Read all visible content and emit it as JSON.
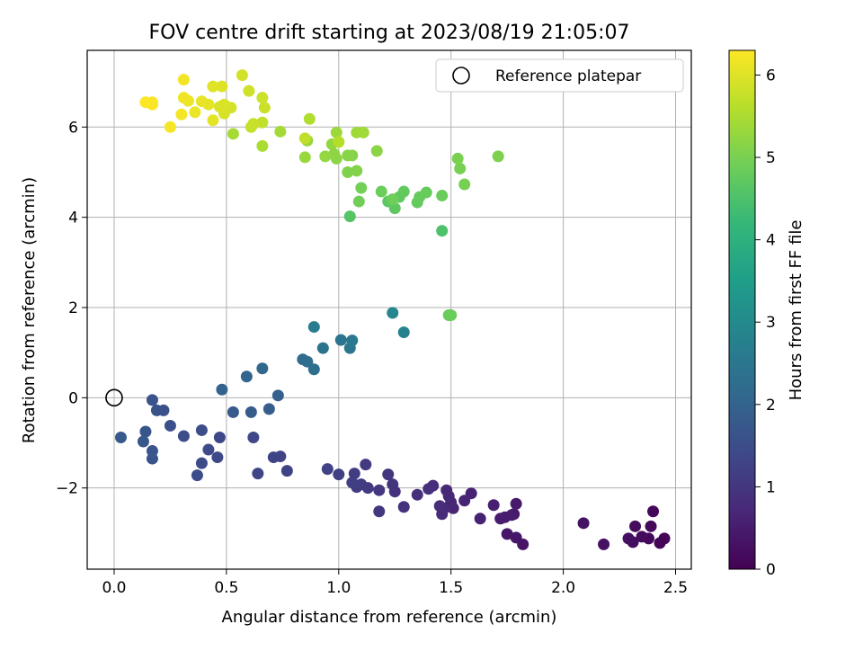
{
  "chart_data": {
    "type": "scatter",
    "title": "FOV centre drift starting at 2023/08/19 21:05:07",
    "xlabel": "Angular distance from reference (arcmin)",
    "ylabel": "Rotation from reference (arcmin)",
    "xlim": [
      -0.12,
      2.57
    ],
    "ylim": [
      -3.8,
      7.7
    ],
    "xticks": [
      0.0,
      0.5,
      1.0,
      1.5,
      2.0,
      2.5
    ],
    "xtick_labels": [
      "0.0",
      "0.5",
      "1.0",
      "1.5",
      "2.0",
      "2.5"
    ],
    "yticks": [
      -2,
      0,
      2,
      4,
      6
    ],
    "ytick_labels": [
      "−2",
      "0",
      "2",
      "4",
      "6"
    ],
    "grid": true,
    "legend": {
      "placement": "top-right",
      "entries": [
        "Reference platepar"
      ]
    },
    "reference_point": {
      "x": 0.0,
      "y": 0.0,
      "marker": "open-circle",
      "color": "#000000"
    },
    "colorbar": {
      "label": "Hours from first FF file",
      "range": [
        0,
        6.3
      ],
      "ticks": [
        0,
        1,
        2,
        3,
        4,
        5,
        6
      ],
      "tick_labels": [
        "0",
        "1",
        "2",
        "3",
        "4",
        "5",
        "6"
      ],
      "colormap": "viridis",
      "colormap_stops": [
        "#440154",
        "#482878",
        "#3e4989",
        "#31688e",
        "#26828e",
        "#1f9e89",
        "#35b779",
        "#6ece58",
        "#b5de2b",
        "#fde725"
      ]
    },
    "points": [
      {
        "x": 2.45,
        "y": -3.12,
        "h": 0.05
      },
      {
        "x": 2.43,
        "y": -3.22,
        "h": 0.08
      },
      {
        "x": 2.4,
        "y": -2.52,
        "h": 0.1
      },
      {
        "x": 2.39,
        "y": -2.85,
        "h": 0.12
      },
      {
        "x": 2.38,
        "y": -3.12,
        "h": 0.15
      },
      {
        "x": 2.35,
        "y": -3.08,
        "h": 0.18
      },
      {
        "x": 2.32,
        "y": -2.85,
        "h": 0.2
      },
      {
        "x": 2.31,
        "y": -3.2,
        "h": 0.22
      },
      {
        "x": 2.29,
        "y": -3.12,
        "h": 0.25
      },
      {
        "x": 2.18,
        "y": -3.25,
        "h": 0.28
      },
      {
        "x": 2.09,
        "y": -2.78,
        "h": 0.3
      },
      {
        "x": 1.82,
        "y": -3.25,
        "h": 0.35
      },
      {
        "x": 1.79,
        "y": -3.1,
        "h": 0.38
      },
      {
        "x": 1.75,
        "y": -3.02,
        "h": 0.4
      },
      {
        "x": 1.78,
        "y": -2.58,
        "h": 0.42
      },
      {
        "x": 1.79,
        "y": -2.35,
        "h": 0.45
      },
      {
        "x": 1.77,
        "y": -2.6,
        "h": 0.48
      },
      {
        "x": 1.74,
        "y": -2.65,
        "h": 0.5
      },
      {
        "x": 1.72,
        "y": -2.68,
        "h": 0.52
      },
      {
        "x": 1.69,
        "y": -2.38,
        "h": 0.55
      },
      {
        "x": 1.63,
        "y": -2.68,
        "h": 0.58
      },
      {
        "x": 1.59,
        "y": -2.12,
        "h": 0.6
      },
      {
        "x": 1.56,
        "y": -2.28,
        "h": 0.62
      },
      {
        "x": 1.51,
        "y": -2.45,
        "h": 0.65
      },
      {
        "x": 1.5,
        "y": -2.32,
        "h": 0.68
      },
      {
        "x": 1.49,
        "y": -2.18,
        "h": 0.7
      },
      {
        "x": 1.48,
        "y": -2.05,
        "h": 0.72
      },
      {
        "x": 1.47,
        "y": -2.45,
        "h": 0.75
      },
      {
        "x": 1.46,
        "y": -2.58,
        "h": 0.78
      },
      {
        "x": 1.45,
        "y": -2.4,
        "h": 0.8
      },
      {
        "x": 1.42,
        "y": -1.95,
        "h": 0.82
      },
      {
        "x": 1.4,
        "y": -2.02,
        "h": 0.85
      },
      {
        "x": 1.35,
        "y": -2.15,
        "h": 0.88
      },
      {
        "x": 1.29,
        "y": -2.42,
        "h": 0.9
      },
      {
        "x": 1.25,
        "y": -2.08,
        "h": 0.92
      },
      {
        "x": 1.24,
        "y": -1.92,
        "h": 0.95
      },
      {
        "x": 1.22,
        "y": -1.7,
        "h": 0.98
      },
      {
        "x": 1.18,
        "y": -2.05,
        "h": 1.0
      },
      {
        "x": 1.18,
        "y": -2.52,
        "h": 1.02
      },
      {
        "x": 1.13,
        "y": -2.0,
        "h": 1.05
      },
      {
        "x": 1.12,
        "y": -1.48,
        "h": 1.08
      },
      {
        "x": 1.1,
        "y": -1.92,
        "h": 1.1
      },
      {
        "x": 1.08,
        "y": -1.98,
        "h": 1.12
      },
      {
        "x": 1.07,
        "y": -1.68,
        "h": 1.15
      },
      {
        "x": 1.06,
        "y": -1.88,
        "h": 1.18
      },
      {
        "x": 1.0,
        "y": -1.7,
        "h": 1.2
      },
      {
        "x": 0.95,
        "y": -1.58,
        "h": 1.22
      },
      {
        "x": 0.77,
        "y": -1.62,
        "h": 1.25
      },
      {
        "x": 0.74,
        "y": -1.3,
        "h": 1.28
      },
      {
        "x": 0.71,
        "y": -1.32,
        "h": 1.3
      },
      {
        "x": 0.64,
        "y": -1.68,
        "h": 1.32
      },
      {
        "x": 0.62,
        "y": -0.88,
        "h": 1.35
      },
      {
        "x": 0.47,
        "y": -0.88,
        "h": 1.38
      },
      {
        "x": 0.46,
        "y": -1.32,
        "h": 1.4
      },
      {
        "x": 0.42,
        "y": -1.15,
        "h": 1.42
      },
      {
        "x": 0.39,
        "y": -1.45,
        "h": 1.45
      },
      {
        "x": 0.37,
        "y": -1.72,
        "h": 1.48
      },
      {
        "x": 0.39,
        "y": -0.72,
        "h": 1.5
      },
      {
        "x": 0.31,
        "y": -0.85,
        "h": 1.52
      },
      {
        "x": 0.25,
        "y": -0.62,
        "h": 1.55
      },
      {
        "x": 0.22,
        "y": -0.28,
        "h": 1.58
      },
      {
        "x": 0.19,
        "y": -0.28,
        "h": 1.6
      },
      {
        "x": 0.17,
        "y": -0.05,
        "h": 1.62
      },
      {
        "x": 0.17,
        "y": -1.35,
        "h": 1.65
      },
      {
        "x": 0.17,
        "y": -1.18,
        "h": 1.68
      },
      {
        "x": 0.14,
        "y": -0.75,
        "h": 1.7
      },
      {
        "x": 0.13,
        "y": -0.97,
        "h": 1.72
      },
      {
        "x": 0.03,
        "y": -0.88,
        "h": 1.75
      },
      {
        "x": 0.53,
        "y": -0.32,
        "h": 1.8
      },
      {
        "x": 0.61,
        "y": -0.32,
        "h": 1.82
      },
      {
        "x": 0.69,
        "y": -0.25,
        "h": 1.85
      },
      {
        "x": 0.73,
        "y": 0.05,
        "h": 1.9
      },
      {
        "x": 0.48,
        "y": 0.18,
        "h": 2.0
      },
      {
        "x": 0.59,
        "y": 0.47,
        "h": 2.05
      },
      {
        "x": 0.66,
        "y": 0.65,
        "h": 2.1
      },
      {
        "x": 0.84,
        "y": 0.85,
        "h": 2.2
      },
      {
        "x": 0.86,
        "y": 0.8,
        "h": 2.25
      },
      {
        "x": 0.89,
        "y": 0.63,
        "h": 2.3
      },
      {
        "x": 0.93,
        "y": 1.1,
        "h": 2.4
      },
      {
        "x": 1.01,
        "y": 1.28,
        "h": 2.45
      },
      {
        "x": 1.05,
        "y": 1.1,
        "h": 2.5
      },
      {
        "x": 1.06,
        "y": 1.27,
        "h": 2.55
      },
      {
        "x": 0.89,
        "y": 1.57,
        "h": 2.6
      },
      {
        "x": 1.29,
        "y": 1.45,
        "h": 2.8
      },
      {
        "x": 1.24,
        "y": 1.88,
        "h": 2.9
      },
      {
        "x": 1.49,
        "y": 1.83,
        "h": 4.8
      },
      {
        "x": 1.5,
        "y": 1.83,
        "h": 4.85
      },
      {
        "x": 1.46,
        "y": 3.7,
        "h": 4.5
      },
      {
        "x": 1.05,
        "y": 4.02,
        "h": 4.6
      },
      {
        "x": 1.22,
        "y": 4.35,
        "h": 4.65
      },
      {
        "x": 1.25,
        "y": 4.2,
        "h": 4.7
      },
      {
        "x": 1.27,
        "y": 4.45,
        "h": 4.72
      },
      {
        "x": 1.29,
        "y": 4.57,
        "h": 4.75
      },
      {
        "x": 1.35,
        "y": 4.33,
        "h": 4.78
      },
      {
        "x": 1.36,
        "y": 4.45,
        "h": 4.8
      },
      {
        "x": 1.39,
        "y": 4.55,
        "h": 4.82
      },
      {
        "x": 1.46,
        "y": 4.48,
        "h": 4.85
      },
      {
        "x": 1.19,
        "y": 4.57,
        "h": 4.88
      },
      {
        "x": 1.24,
        "y": 4.4,
        "h": 4.9
      },
      {
        "x": 1.09,
        "y": 4.35,
        "h": 4.92
      },
      {
        "x": 1.1,
        "y": 4.65,
        "h": 4.95
      },
      {
        "x": 1.56,
        "y": 4.73,
        "h": 4.98
      },
      {
        "x": 1.54,
        "y": 5.08,
        "h": 5.0
      },
      {
        "x": 1.53,
        "y": 5.3,
        "h": 5.02
      },
      {
        "x": 1.71,
        "y": 5.35,
        "h": 5.05
      },
      {
        "x": 1.04,
        "y": 5.0,
        "h": 5.08
      },
      {
        "x": 1.08,
        "y": 5.03,
        "h": 5.1
      },
      {
        "x": 1.06,
        "y": 5.37,
        "h": 5.12
      },
      {
        "x": 1.04,
        "y": 5.37,
        "h": 5.15
      },
      {
        "x": 1.17,
        "y": 5.47,
        "h": 5.18
      },
      {
        "x": 0.99,
        "y": 5.3,
        "h": 5.2
      },
      {
        "x": 0.98,
        "y": 5.4,
        "h": 5.22
      },
      {
        "x": 0.97,
        "y": 5.62,
        "h": 5.25
      },
      {
        "x": 0.94,
        "y": 5.35,
        "h": 5.28
      },
      {
        "x": 0.86,
        "y": 5.7,
        "h": 5.3
      },
      {
        "x": 0.85,
        "y": 5.33,
        "h": 5.32
      },
      {
        "x": 0.99,
        "y": 5.88,
        "h": 5.35
      },
      {
        "x": 1.08,
        "y": 5.88,
        "h": 5.38
      },
      {
        "x": 1.11,
        "y": 5.88,
        "h": 5.4
      },
      {
        "x": 0.74,
        "y": 5.9,
        "h": 5.42
      },
      {
        "x": 0.53,
        "y": 5.85,
        "h": 5.45
      },
      {
        "x": 0.66,
        "y": 5.58,
        "h": 5.5
      },
      {
        "x": 0.87,
        "y": 6.18,
        "h": 5.55
      },
      {
        "x": 1.0,
        "y": 5.67,
        "h": 5.6
      },
      {
        "x": 0.85,
        "y": 5.75,
        "h": 5.7
      },
      {
        "x": 0.66,
        "y": 6.1,
        "h": 5.72
      },
      {
        "x": 0.61,
        "y": 6.0,
        "h": 5.75
      },
      {
        "x": 0.62,
        "y": 6.07,
        "h": 5.78
      },
      {
        "x": 0.67,
        "y": 6.43,
        "h": 5.8
      },
      {
        "x": 0.66,
        "y": 6.65,
        "h": 5.82
      },
      {
        "x": 0.6,
        "y": 6.8,
        "h": 5.85
      },
      {
        "x": 0.57,
        "y": 7.15,
        "h": 5.88
      },
      {
        "x": 0.52,
        "y": 6.43,
        "h": 5.9
      },
      {
        "x": 0.49,
        "y": 6.3,
        "h": 5.92
      },
      {
        "x": 0.49,
        "y": 6.5,
        "h": 5.95
      },
      {
        "x": 0.47,
        "y": 6.45,
        "h": 5.97
      },
      {
        "x": 0.48,
        "y": 6.9,
        "h": 6.0
      },
      {
        "x": 0.44,
        "y": 6.9,
        "h": 6.02
      },
      {
        "x": 0.44,
        "y": 6.15,
        "h": 6.05
      },
      {
        "x": 0.42,
        "y": 6.5,
        "h": 6.07
      },
      {
        "x": 0.39,
        "y": 6.57,
        "h": 6.1
      },
      {
        "x": 0.36,
        "y": 6.33,
        "h": 6.12
      },
      {
        "x": 0.33,
        "y": 6.58,
        "h": 6.14
      },
      {
        "x": 0.31,
        "y": 6.65,
        "h": 6.16
      },
      {
        "x": 0.31,
        "y": 7.05,
        "h": 6.18
      },
      {
        "x": 0.3,
        "y": 6.28,
        "h": 6.2
      },
      {
        "x": 0.25,
        "y": 6.0,
        "h": 6.22
      },
      {
        "x": 0.17,
        "y": 6.55,
        "h": 6.24
      },
      {
        "x": 0.17,
        "y": 6.5,
        "h": 6.26
      },
      {
        "x": 0.14,
        "y": 6.55,
        "h": 6.28
      }
    ]
  }
}
